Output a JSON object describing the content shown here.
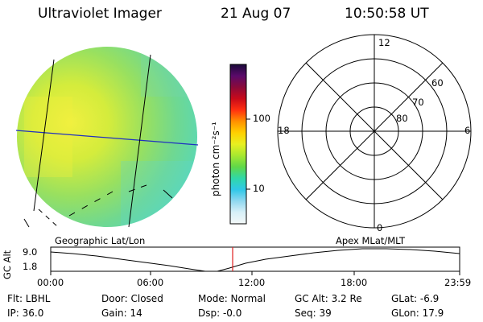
{
  "header": {
    "instrument": "Ultraviolet Imager",
    "date": "21 Aug 07",
    "time": "10:50:58 UT"
  },
  "colorbar": {
    "unit_label": "photon cm⁻²s⁻¹",
    "ticks": [
      "100",
      "10"
    ],
    "colors": [
      "#1a0a3a",
      "#5a0a6a",
      "#8a0a3a",
      "#c80a1a",
      "#ff3010",
      "#ff9000",
      "#ffd000",
      "#e8f020",
      "#a8e830",
      "#60d848",
      "#30d8a8",
      "#30c8e8",
      "#90d8f0",
      "#d8f0f8",
      "#f4f8f8"
    ]
  },
  "polar": {
    "mlt_labels": {
      "top": "12",
      "right": "6",
      "bottom": "0",
      "left": "18"
    },
    "lat_labels": [
      "60",
      "70",
      "80"
    ]
  },
  "timeline": {
    "left_title": "Geographic Lat/Lon",
    "right_title": "Apex MLat/MLT",
    "y_axis_label": "GC Alt",
    "y_ticks": [
      "9.0",
      "1.8"
    ],
    "x_ticks": [
      "00:00",
      "06:00",
      "12:00",
      "18:00",
      "23:59"
    ],
    "current_time_marker_color": "#e02020"
  },
  "status": {
    "filter": "Flt: LBHL",
    "ip": "IP: 36.0",
    "door": "Door: Closed",
    "gain": "Gain: 14",
    "mode": "Mode: Normal",
    "dsp": "Dsp:    -0.0",
    "gc_alt": "GC Alt: 3.2 Re",
    "seq": "Seq: 39",
    "glat": "GLat:   -6.9",
    "glon": "GLon:   17.9"
  }
}
